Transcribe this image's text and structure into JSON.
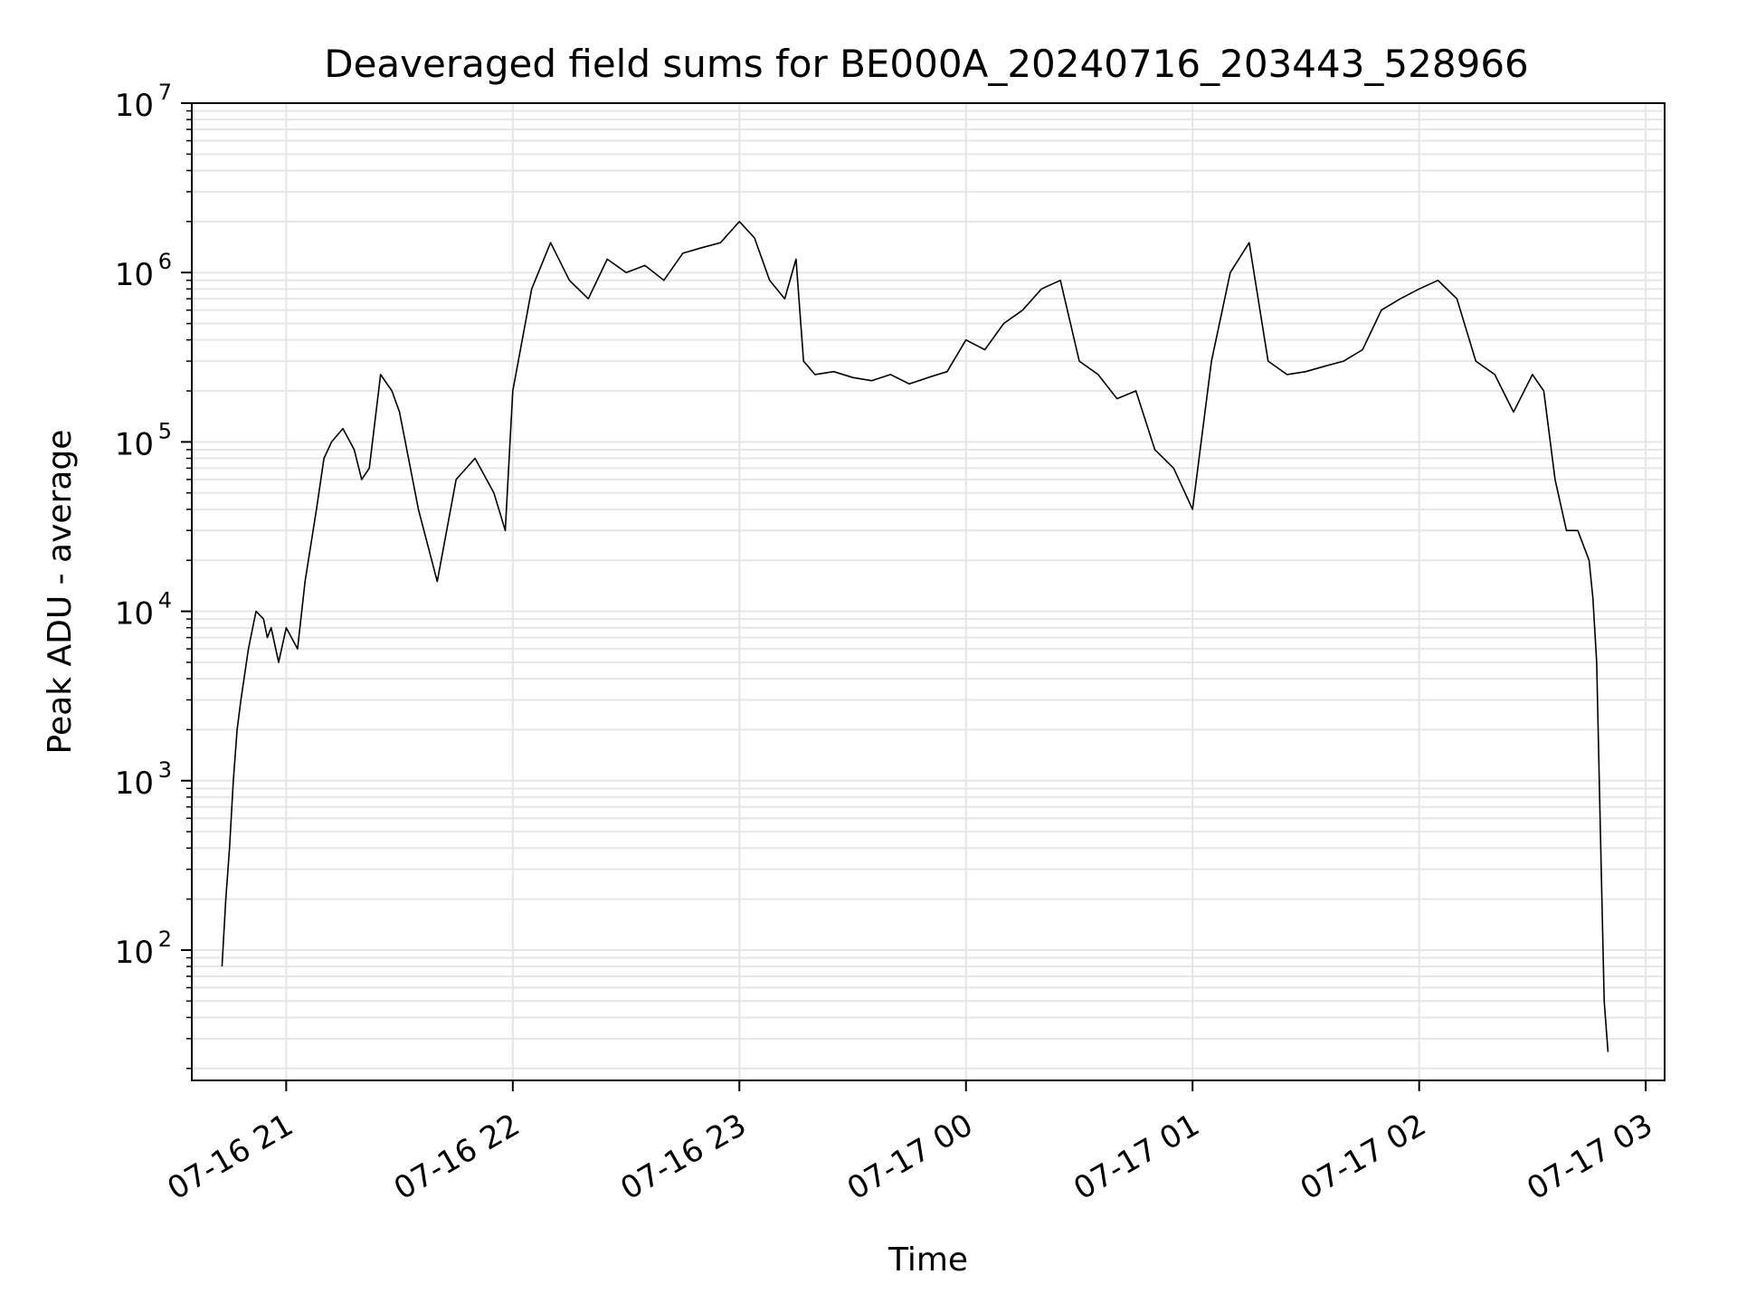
{
  "chart_data": {
    "type": "line",
    "title": "Deaveraged field sums for BE000A_20240716_203443_528966",
    "xlabel": "Time",
    "ylabel": "Peak ADU - average",
    "y_scale": "log",
    "ylim": [
      17,
      10000000
    ],
    "xlim": [
      "2024-07-16 20:35",
      "2024-07-17 03:05"
    ],
    "x_ticks": [
      {
        "time": "2024-07-16 21:00",
        "label": "07-16 21"
      },
      {
        "time": "2024-07-16 22:00",
        "label": "07-16 22"
      },
      {
        "time": "2024-07-16 23:00",
        "label": "07-16 23"
      },
      {
        "time": "2024-07-17 00:00",
        "label": "07-17 00"
      },
      {
        "time": "2024-07-17 01:00",
        "label": "07-17 01"
      },
      {
        "time": "2024-07-17 02:00",
        "label": "07-17 02"
      },
      {
        "time": "2024-07-17 03:00",
        "label": "07-17 03"
      }
    ],
    "y_ticks": [
      {
        "value": 100,
        "base": "10",
        "exp": "2"
      },
      {
        "value": 1000,
        "base": "10",
        "exp": "3"
      },
      {
        "value": 10000,
        "base": "10",
        "exp": "4"
      },
      {
        "value": 100000,
        "base": "10",
        "exp": "5"
      },
      {
        "value": 1000000,
        "base": "10",
        "exp": "6"
      },
      {
        "value": 10000000,
        "base": "10",
        "exp": "7"
      }
    ],
    "grid": true,
    "grid_minor": true,
    "line_color": "#000000",
    "grid_color": "#e6e6e6",
    "series": [
      {
        "x": [
          "2024-07-16 20:43",
          "2024-07-16 20:44",
          "2024-07-16 20:45",
          "2024-07-16 20:46",
          "2024-07-16 20:47",
          "2024-07-16 20:48",
          "2024-07-16 20:50",
          "2024-07-16 20:52",
          "2024-07-16 20:54",
          "2024-07-16 20:55",
          "2024-07-16 20:56",
          "2024-07-16 20:58",
          "2024-07-16 21:00",
          "2024-07-16 21:03",
          "2024-07-16 21:05",
          "2024-07-16 21:08",
          "2024-07-16 21:10",
          "2024-07-16 21:12",
          "2024-07-16 21:15",
          "2024-07-16 21:18",
          "2024-07-16 21:20",
          "2024-07-16 21:22",
          "2024-07-16 21:25",
          "2024-07-16 21:28",
          "2024-07-16 21:30",
          "2024-07-16 21:35",
          "2024-07-16 21:40",
          "2024-07-16 21:45",
          "2024-07-16 21:50",
          "2024-07-16 21:55",
          "2024-07-16 21:58",
          "2024-07-16 22:00",
          "2024-07-16 22:05",
          "2024-07-16 22:10",
          "2024-07-16 22:15",
          "2024-07-16 22:20",
          "2024-07-16 22:25",
          "2024-07-16 22:30",
          "2024-07-16 22:35",
          "2024-07-16 22:40",
          "2024-07-16 22:45",
          "2024-07-16 22:50",
          "2024-07-16 22:55",
          "2024-07-16 23:00",
          "2024-07-16 23:04",
          "2024-07-16 23:08",
          "2024-07-16 23:12",
          "2024-07-16 23:15",
          "2024-07-16 23:17",
          "2024-07-16 23:20",
          "2024-07-16 23:25",
          "2024-07-16 23:30",
          "2024-07-16 23:35",
          "2024-07-16 23:40",
          "2024-07-16 23:45",
          "2024-07-16 23:50",
          "2024-07-16 23:55",
          "2024-07-17 00:00",
          "2024-07-17 00:05",
          "2024-07-17 00:10",
          "2024-07-17 00:15",
          "2024-07-17 00:20",
          "2024-07-17 00:25",
          "2024-07-17 00:30",
          "2024-07-17 00:35",
          "2024-07-17 00:40",
          "2024-07-17 00:45",
          "2024-07-17 00:50",
          "2024-07-17 00:55",
          "2024-07-17 01:00",
          "2024-07-17 01:05",
          "2024-07-17 01:10",
          "2024-07-17 01:15",
          "2024-07-17 01:20",
          "2024-07-17 01:25",
          "2024-07-17 01:30",
          "2024-07-17 01:35",
          "2024-07-17 01:40",
          "2024-07-17 01:45",
          "2024-07-17 01:50",
          "2024-07-17 01:55",
          "2024-07-17 02:00",
          "2024-07-17 02:05",
          "2024-07-17 02:10",
          "2024-07-17 02:15",
          "2024-07-17 02:20",
          "2024-07-17 02:25",
          "2024-07-17 02:30",
          "2024-07-17 02:33",
          "2024-07-17 02:36",
          "2024-07-17 02:39",
          "2024-07-17 02:42",
          "2024-07-17 02:45",
          "2024-07-17 02:46",
          "2024-07-17 02:47",
          "2024-07-17 02:48",
          "2024-07-17 02:49",
          "2024-07-17 02:50"
        ],
        "values": [
          80,
          200,
          400,
          1000,
          2000,
          3000,
          6000,
          10000,
          9000,
          7000,
          8000,
          5000,
          8000,
          6000,
          15000,
          40000,
          80000,
          100000,
          120000,
          90000,
          60000,
          70000,
          250000,
          200000,
          150000,
          40000,
          15000,
          60000,
          80000,
          50000,
          30000,
          200000,
          800000,
          1500000,
          900000,
          700000,
          1200000,
          1000000,
          1100000,
          900000,
          1300000,
          1400000,
          1500000,
          2000000,
          1600000,
          900000,
          700000,
          1200000,
          300000,
          250000,
          260000,
          240000,
          230000,
          250000,
          220000,
          240000,
          260000,
          400000,
          350000,
          500000,
          600000,
          800000,
          900000,
          300000,
          250000,
          180000,
          200000,
          90000,
          70000,
          40000,
          300000,
          1000000,
          1500000,
          300000,
          250000,
          260000,
          280000,
          300000,
          350000,
          600000,
          700000,
          800000,
          900000,
          700000,
          300000,
          250000,
          150000,
          250000,
          200000,
          60000,
          30000,
          30000,
          20000,
          12000,
          5000,
          500,
          50,
          25
        ]
      }
    ]
  }
}
